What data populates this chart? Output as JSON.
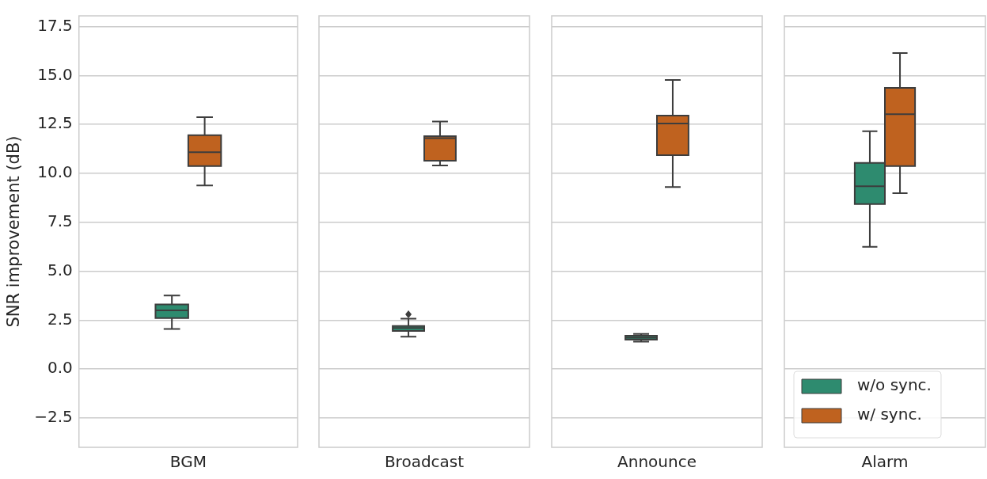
{
  "chart_data": [
    {
      "type": "box",
      "categories": [
        "BGM"
      ],
      "ylabel": "SNR improvement (dB)",
      "ylim": [
        -4,
        18.05
      ],
      "yticks": [
        {
          "value": -2.5,
          "label": "−2.5"
        },
        {
          "value": 0,
          "label": "0.0"
        },
        {
          "value": 2.5,
          "label": "2.5"
        },
        {
          "value": 5,
          "label": "5.0"
        },
        {
          "value": 7.5,
          "label": "7.5"
        },
        {
          "value": 10,
          "label": "10.0"
        },
        {
          "value": 12.5,
          "label": "12.5"
        },
        {
          "value": 15,
          "label": "15.0"
        },
        {
          "value": 17.5,
          "label": "17.5"
        }
      ],
      "grid": "y",
      "series": [
        {
          "color": "#2e8b6f",
          "boxes": [
            {
              "low": 2.05,
              "q1": 2.6,
              "median": 3.0,
              "q3": 3.3,
              "high": 3.76
            }
          ]
        },
        {
          "color": "#bf621f",
          "boxes": [
            {
              "low": 9.38,
              "q1": 10.37,
              "median": 11.08,
              "q3": 11.95,
              "high": 12.87
            }
          ]
        }
      ]
    },
    {
      "type": "box",
      "categories": [
        "Broadcast"
      ],
      "ylim": [
        -4,
        18.05
      ],
      "yticks": [
        -2.5,
        0,
        2.5,
        5,
        7.5,
        10,
        12.5,
        15,
        17.5
      ],
      "grid": "y",
      "tick_labels": "x",
      "series": [
        {
          "color": "#2e8b6f",
          "boxes": [
            {
              "low": 1.65,
              "q1": 1.95,
              "median": 2.1,
              "q3": 2.2,
              "high": 2.57,
              "outliers": [
                2.8
              ]
            }
          ]
        },
        {
          "color": "#bf621f",
          "boxes": [
            {
              "low": 10.4,
              "q1": 10.65,
              "median": 11.8,
              "q3": 11.9,
              "high": 12.65
            }
          ]
        }
      ]
    },
    {
      "type": "box",
      "categories": [
        "Announce"
      ],
      "ylim": [
        -4,
        18.05
      ],
      "yticks": [
        -2.5,
        0,
        2.5,
        5,
        7.5,
        10,
        12.5,
        15,
        17.5
      ],
      "grid": "y",
      "tick_labels": "x",
      "series": [
        {
          "color": "#2e8b6f",
          "boxes": [
            {
              "low": 1.4,
              "q1": 1.5,
              "median": 1.6,
              "q3": 1.7,
              "high": 1.8
            }
          ]
        },
        {
          "color": "#bf621f",
          "boxes": [
            {
              "low": 9.3,
              "q1": 10.93,
              "median": 12.55,
              "q3": 12.95,
              "high": 14.77
            }
          ]
        }
      ]
    },
    {
      "type": "box",
      "categories": [
        "Alarm"
      ],
      "ylim": [
        -4,
        18.05
      ],
      "yticks": [
        -2.5,
        0,
        2.5,
        5,
        7.5,
        10,
        12.5,
        15,
        17.5
      ],
      "grid": "y",
      "tick_labels": "x",
      "legend": "bottom left",
      "series": [
        {
          "name": "w/o sync.",
          "color": "#2e8b6f",
          "boxes": [
            {
              "low": 6.25,
              "q1": 8.43,
              "median": 9.34,
              "q3": 10.53,
              "high": 12.15
            }
          ]
        },
        {
          "name": "w/ sync.",
          "color": "#bf621f",
          "boxes": [
            {
              "low": 8.99,
              "q1": 10.37,
              "median": 13.02,
              "q3": 14.37,
              "high": 16.15
            }
          ]
        }
      ]
    }
  ]
}
